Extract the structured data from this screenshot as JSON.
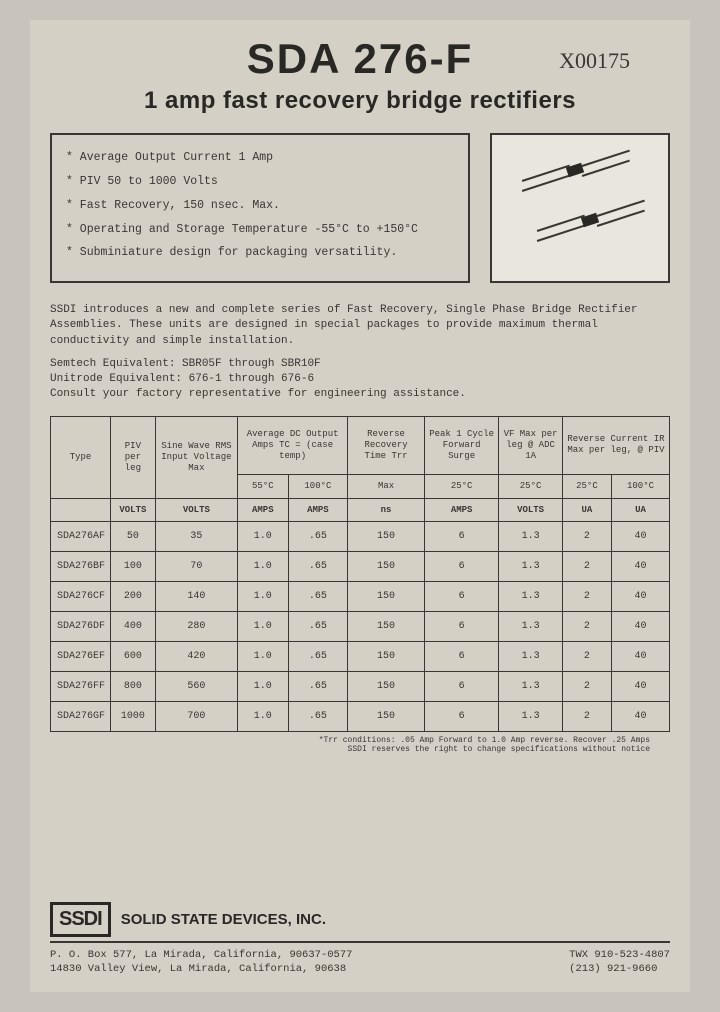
{
  "header": {
    "part_number": "SDA 276-F",
    "handwritten_code": "X00175",
    "subtitle": "1 amp  fast recovery bridge rectifiers"
  },
  "features": [
    "* Average Output Current 1 Amp",
    "* PIV 50 to 1000 Volts",
    "* Fast Recovery, 150 nsec. Max.",
    "* Operating and Storage Temperature -55°C to +150°C",
    "* Subminiature design for packaging versatility."
  ],
  "intro": {
    "p1": "SSDI introduces a new and complete series of Fast Recovery, Single Phase Bridge Rectifier Assemblies.  These units are designed in special packages to provide maximum thermal conductivity and simple installation.",
    "equiv1": "Semtech Equivalent:  SBR05F through SBR10F",
    "equiv2": "Unitrode Equivalent: 676-1 through 676-6",
    "equiv3": "Consult your factory representative for engineering assistance."
  },
  "table": {
    "headers": {
      "type": "Type",
      "piv": "PIV per leg",
      "rms": "Sine Wave RMS Input Voltage Max",
      "avg_dc": "Average DC Output Amps TC = (case temp)",
      "trr": "Reverse Recovery Time Trr",
      "surge": "Peak 1 Cycle Forward Surge",
      "vf": "VF Max per leg @ ADC 1A",
      "ir": "Reverse Current IR Max per leg, @ PIV"
    },
    "sub_headers": {
      "t55": "55°C",
      "t100": "100°C",
      "max": "Max",
      "t25a": "25°C",
      "t25b": "25°C",
      "t25c": "25°C",
      "t100b": "100°C"
    },
    "units": [
      "",
      "VOLTS",
      "VOLTS",
      "AMPS",
      "AMPS",
      "ns",
      "AMPS",
      "VOLTS",
      "UA",
      "UA"
    ],
    "rows": [
      {
        "type": "SDA276AF",
        "piv": "50",
        "rms": "35",
        "a55": "1.0",
        "a100": ".65",
        "trr": "150",
        "surge": "6",
        "vf": "1.3",
        "ir25": "2",
        "ir100": "40"
      },
      {
        "type": "SDA276BF",
        "piv": "100",
        "rms": "70",
        "a55": "1.0",
        "a100": ".65",
        "trr": "150",
        "surge": "6",
        "vf": "1.3",
        "ir25": "2",
        "ir100": "40"
      },
      {
        "type": "SDA276CF",
        "piv": "200",
        "rms": "140",
        "a55": "1.0",
        "a100": ".65",
        "trr": "150",
        "surge": "6",
        "vf": "1.3",
        "ir25": "2",
        "ir100": "40"
      },
      {
        "type": "SDA276DF",
        "piv": "400",
        "rms": "280",
        "a55": "1.0",
        "a100": ".65",
        "trr": "150",
        "surge": "6",
        "vf": "1.3",
        "ir25": "2",
        "ir100": "40"
      },
      {
        "type": "SDA276EF",
        "piv": "600",
        "rms": "420",
        "a55": "1.0",
        "a100": ".65",
        "trr": "150",
        "surge": "6",
        "vf": "1.3",
        "ir25": "2",
        "ir100": "40"
      },
      {
        "type": "SDA276FF",
        "piv": "800",
        "rms": "560",
        "a55": "1.0",
        "a100": ".65",
        "trr": "150",
        "surge": "6",
        "vf": "1.3",
        "ir25": "2",
        "ir100": "40"
      },
      {
        "type": "SDA276GF",
        "piv": "1000",
        "rms": "700",
        "a55": "1.0",
        "a100": ".65",
        "trr": "150",
        "surge": "6",
        "vf": "1.3",
        "ir25": "2",
        "ir100": "40"
      }
    ]
  },
  "note": {
    "l1": "*Trr conditions: .05 Amp Forward to 1.0 Amp reverse. Recover .25 Amps",
    "l2": "SSDI reserves the right to change specifications without notice"
  },
  "footer": {
    "logo": "SSDI",
    "company": "SOLID STATE DEVICES, INC.",
    "addr1": "P. O. Box 577, La Mirada, California, 90637-0577",
    "addr2": "14830 Valley View, La Mirada, California, 90638",
    "twx": "TWX 910-523-4807",
    "phone": "(213) 921-9660"
  },
  "styling": {
    "page_bg": "#d4d0c6",
    "body_bg": "#c8c4bc",
    "text_color": "#3a3632",
    "border_color": "#3a3632",
    "title_fontsize": 42,
    "subtitle_fontsize": 24,
    "body_fontsize": 11,
    "table_fontsize": 10
  }
}
